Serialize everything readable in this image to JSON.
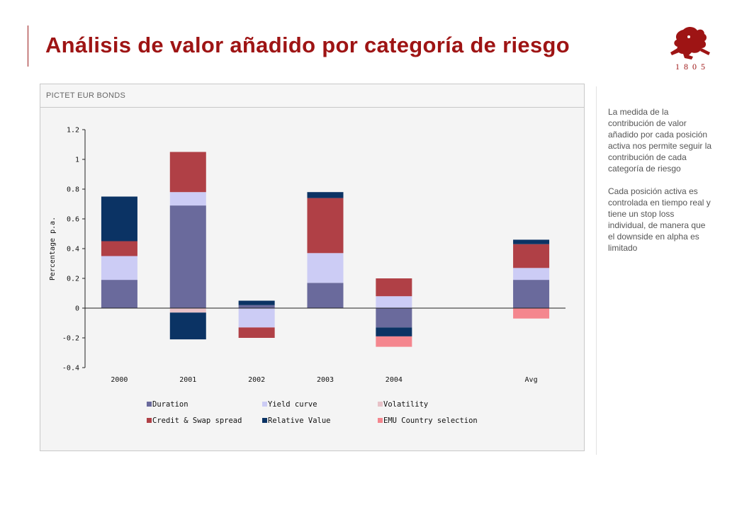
{
  "title": "Análisis de valor añadido por categoría de riesgo",
  "logo": {
    "year": "1805"
  },
  "panel": {
    "label": "PICTET EUR BONDS"
  },
  "side_text": [
    "La medida de la contribución de valor añadido por cada posición activa nos permite seguir la contribución de cada categoría de riesgo",
    "Cada posición activa es controlada en tiempo real y tiene un stop loss individual, de manera que el downside en alpha es limitado"
  ],
  "chart_data": {
    "type": "bar",
    "stacked": true,
    "categories": [
      "2000",
      "2001",
      "2002",
      "2003",
      "2004",
      "",
      "Avg"
    ],
    "ylabel": "Percentage p.a.",
    "ylim": [
      -0.4,
      1.2
    ],
    "yticks": [
      "1.2",
      "1",
      "0.8",
      "0.6",
      "0.4",
      "0.2",
      "0",
      "-0.2",
      "-0.4"
    ],
    "ytick_values": [
      1.2,
      1,
      0.8,
      0.6,
      0.4,
      0.2,
      0,
      -0.2,
      -0.4
    ],
    "grid": true,
    "legend_position": "bottom",
    "series": [
      {
        "name": "Duration",
        "color": "#6a6a9c",
        "values": [
          0.19,
          0.69,
          0.02,
          0.17,
          -0.13,
          0,
          0.19
        ]
      },
      {
        "name": "Yield curve",
        "color": "#ccccf5",
        "values": [
          0.16,
          0.09,
          -0.13,
          0.2,
          0.08,
          0,
          0.08
        ]
      },
      {
        "name": "Volatility",
        "color": "#e8c2c8",
        "values": [
          0,
          -0.03,
          0,
          0,
          0,
          0,
          0
        ]
      },
      {
        "name": "Credit & Swap spread",
        "color": "#b04046",
        "values": [
          0.1,
          0.27,
          -0.07,
          0.37,
          0.12,
          0,
          0.16
        ]
      },
      {
        "name": "Relative Value",
        "color": "#0b3364",
        "values": [
          0.3,
          -0.18,
          0.03,
          0.04,
          -0.06,
          0,
          0.03
        ]
      },
      {
        "name": "EMU Country selection",
        "color": "#f4868e",
        "values": [
          0,
          0,
          0,
          0,
          -0.07,
          0,
          -0.07
        ]
      }
    ]
  }
}
